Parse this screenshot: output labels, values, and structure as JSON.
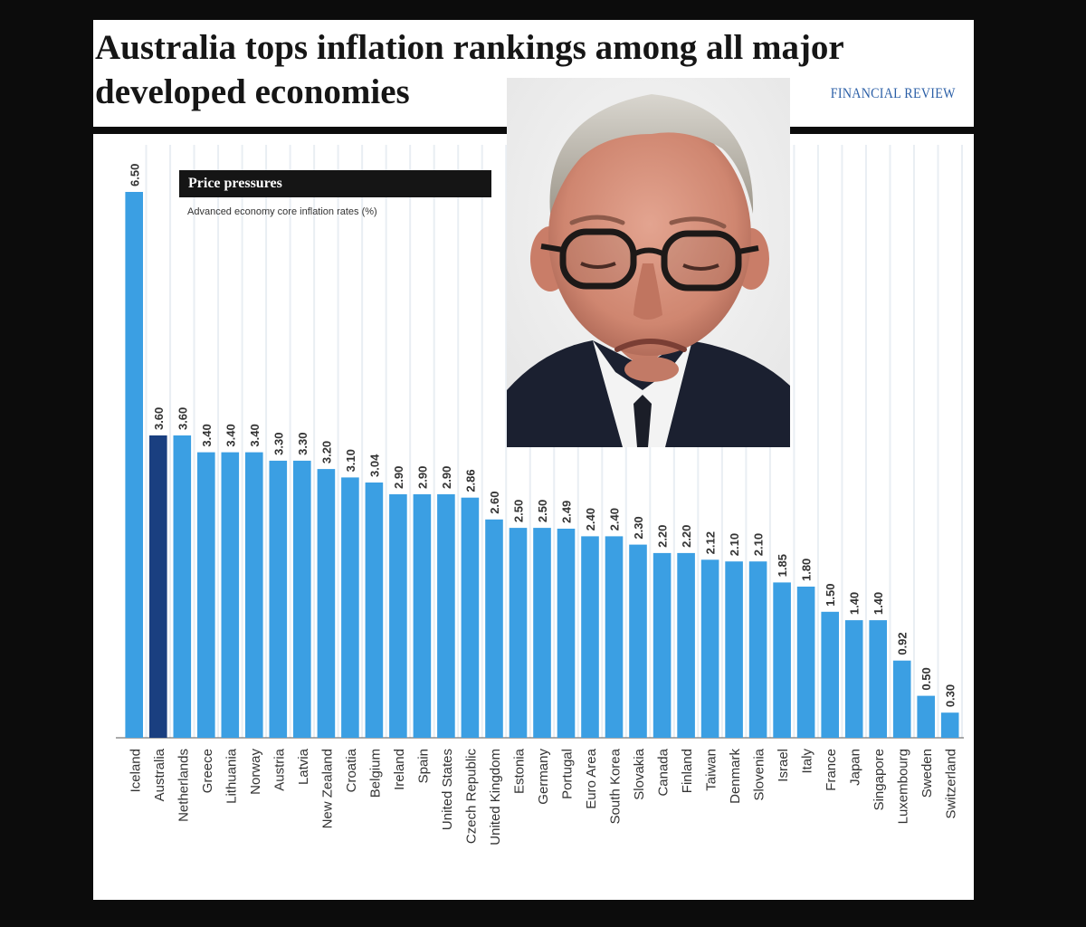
{
  "headline": "Australia tops inflation rankings among all major developed economies",
  "publisher": "FINANCIAL REVIEW",
  "colors": {
    "bar": "#3b9fe3",
    "highlight_bar": "#1a3f80",
    "gridline": "#e9eef3",
    "label": "#333333"
  },
  "chart_data": {
    "type": "bar",
    "title": "Price pressures",
    "subtitle": "Advanced economy core inflation rates (%)",
    "highlight": "Australia",
    "categories": [
      "Iceland",
      "Australia",
      "Netherlands",
      "Greece",
      "Lithuania",
      "Norway",
      "Austria",
      "Latvia",
      "New Zealand",
      "Croatia",
      "Belgium",
      "Ireland",
      "Spain",
      "United States",
      "Czech Republic",
      "United Kingdom",
      "Estonia",
      "Germany",
      "Portugal",
      "Euro Area",
      "South Korea",
      "Slovakia",
      "Canada",
      "Finland",
      "Taiwan",
      "Denmark",
      "Slovenia",
      "Israel",
      "Italy",
      "France",
      "Japan",
      "Singapore",
      "Luxembourg",
      "Sweden",
      "Switzerland"
    ],
    "values": [
      6.5,
      3.6,
      3.6,
      3.4,
      3.4,
      3.4,
      3.3,
      3.3,
      3.2,
      3.1,
      3.04,
      2.9,
      2.9,
      2.9,
      2.86,
      2.6,
      2.5,
      2.5,
      2.49,
      2.4,
      2.4,
      2.3,
      2.2,
      2.2,
      2.12,
      2.1,
      2.1,
      1.85,
      1.8,
      1.5,
      1.4,
      1.4,
      0.92,
      0.5,
      0.3
    ],
    "value_labels": [
      "6.50",
      "3.60",
      "3.60",
      "3.40",
      "3.40",
      "3.40",
      "3.30",
      "3.30",
      "3.20",
      "3.10",
      "3.04",
      "2.90",
      "2.90",
      "2.90",
      "2.86",
      "2.60",
      "2.50",
      "2.50",
      "2.49",
      "2.40",
      "2.40",
      "2.30",
      "2.20",
      "2.20",
      "2.12",
      "2.10",
      "2.10",
      "1.85",
      "1.80",
      "1.50",
      "1.40",
      "1.40",
      "0.92",
      "0.50",
      "0.30"
    ],
    "ylim": [
      0,
      6.5
    ],
    "grid": true,
    "legend": "top-left"
  }
}
